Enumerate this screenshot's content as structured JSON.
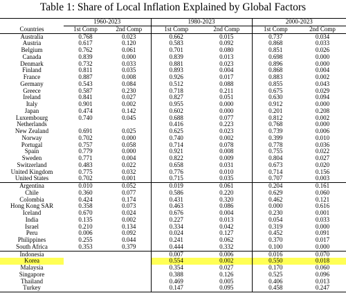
{
  "title": "Table 1: Share of Local Inflation Explained by Global Factors",
  "table": {
    "country_header": "Countries",
    "periods": [
      {
        "label": "1960-2023",
        "columns": [
          "1st Comp",
          "2nd Comp"
        ]
      },
      {
        "label": "1980-2023",
        "columns": [
          "1st Comp",
          "2nd Comp"
        ]
      },
      {
        "label": "2000-2023",
        "columns": [
          "1st Comp",
          "2nd Comp"
        ]
      }
    ],
    "groups": [
      [
        {
          "country": "Australia",
          "values": [
            "0.768",
            "0.023",
            "0.662",
            "0.015",
            "0.737",
            "0.034"
          ]
        },
        {
          "country": "Austria",
          "values": [
            "0.617",
            "0.120",
            "0.583",
            "0.092",
            "0.868",
            "0.033"
          ]
        },
        {
          "country": "Belgium",
          "values": [
            "0.762",
            "0.061",
            "0.701",
            "0.080",
            "0.851",
            "0.026"
          ]
        },
        {
          "country": "Canada",
          "values": [
            "0.839",
            "0.000",
            "0.839",
            "0.013",
            "0.698",
            "0.000"
          ]
        },
        {
          "country": "Denmark",
          "values": [
            "0.732",
            "0.033",
            "0.881",
            "0.023",
            "0.896",
            "0.000"
          ]
        },
        {
          "country": "Finland",
          "values": [
            "0.811",
            "0.035",
            "0.893",
            "0.004",
            "0.868",
            "0.004"
          ]
        },
        {
          "country": "France",
          "values": [
            "0.887",
            "0.008",
            "0.926",
            "0.017",
            "0.883",
            "0.002"
          ]
        },
        {
          "country": "Germany",
          "values": [
            "0.543",
            "0.084",
            "0.512",
            "0.088",
            "0.855",
            "0.043"
          ]
        },
        {
          "country": "Greece",
          "values": [
            "0.587",
            "0.230",
            "0.718",
            "0.211",
            "0.675",
            "0.029"
          ]
        },
        {
          "country": "Ireland",
          "values": [
            "0.841",
            "0.027",
            "0.827",
            "0.051",
            "0.630",
            "0.094"
          ]
        },
        {
          "country": "Italy",
          "values": [
            "0.901",
            "0.002",
            "0.955",
            "0.000",
            "0.912",
            "0.000"
          ]
        },
        {
          "country": "Japan",
          "values": [
            "0.474",
            "0.142",
            "0.602",
            "0.000",
            "0.201",
            "0.208"
          ]
        },
        {
          "country": "Luxembourg",
          "values": [
            "0.740",
            "0.045",
            "0.688",
            "0.077",
            "0.812",
            "0.002"
          ]
        },
        {
          "country": "Netherlands",
          "values": [
            null,
            null,
            "0.416",
            "0.223",
            "0.768",
            "0.000"
          ]
        },
        {
          "country": "New Zealand",
          "values": [
            "0.691",
            "0.025",
            "0.625",
            "0.023",
            "0.739",
            "0.006"
          ]
        },
        {
          "country": "Norway",
          "values": [
            "0.702",
            "0.000",
            "0.740",
            "0.002",
            "0.399",
            "0.010"
          ]
        },
        {
          "country": "Portugal",
          "values": [
            "0.757",
            "0.058",
            "0.714",
            "0.078",
            "0.778",
            "0.036"
          ]
        },
        {
          "country": "Spain",
          "values": [
            "0.779",
            "0.000",
            "0.921",
            "0.008",
            "0.755",
            "0.022"
          ]
        },
        {
          "country": "Sweden",
          "values": [
            "0.771",
            "0.004",
            "0.822",
            "0.009",
            "0.804",
            "0.027"
          ]
        },
        {
          "country": "Switzerland",
          "values": [
            "0.483",
            "0.022",
            "0.658",
            "0.031",
            "0.673",
            "0.020"
          ]
        },
        {
          "country": "United Kingdom",
          "values": [
            "0.775",
            "0.032",
            "0.776",
            "0.010",
            "0.714",
            "0.156"
          ]
        },
        {
          "country": "United States",
          "values": [
            "0.702",
            "0.001",
            "0.715",
            "0.035",
            "0.707",
            "0.003"
          ]
        }
      ],
      [
        {
          "country": "Argentina",
          "values": [
            "0.010",
            "0.052",
            "0.019",
            "0.061",
            "0.204",
            "0.161"
          ]
        },
        {
          "country": "Chile",
          "values": [
            "0.360",
            "0.077",
            "0.586",
            "0.220",
            "0.629",
            "0.060"
          ]
        },
        {
          "country": "Colombia",
          "values": [
            "0.424",
            "0.174",
            "0.431",
            "0.320",
            "0.462",
            "0.121"
          ]
        },
        {
          "country": "Hong Kong SAR",
          "values": [
            "0.358",
            "0.073",
            "0.463",
            "0.086",
            "0.000",
            "0.616"
          ]
        },
        {
          "country": "Iceland",
          "values": [
            "0.670",
            "0.024",
            "0.676",
            "0.004",
            "0.230",
            "0.001"
          ]
        },
        {
          "country": "India",
          "values": [
            "0.135",
            "0.002",
            "0.227",
            "0.013",
            "0.054",
            "0.033"
          ]
        },
        {
          "country": "Israel",
          "values": [
            "0.210",
            "0.134",
            "0.334",
            "0.042",
            "0.319",
            "0.000"
          ]
        },
        {
          "country": "Peru",
          "values": [
            "0.006",
            "0.092",
            "0.024",
            "0.127",
            "0.452",
            "0.091"
          ]
        },
        {
          "country": "Philippines",
          "values": [
            "0.255",
            "0.044",
            "0.241",
            "0.062",
            "0.370",
            "0.017"
          ]
        },
        {
          "country": "South Africa",
          "values": [
            "0.353",
            "0.379",
            "0.444",
            "0.332",
            "0.100",
            "0.000"
          ]
        }
      ],
      [
        {
          "country": "Indonesia",
          "values": [
            null,
            null,
            "0.007",
            "0.006",
            "0.016",
            "0.070"
          ]
        },
        {
          "country": "Korea",
          "highlighted": true,
          "values": [
            null,
            null,
            "0.554",
            "0.002",
            "0.550",
            "0.018"
          ]
        },
        {
          "country": "Malaysia",
          "values": [
            null,
            null,
            "0.354",
            "0.027",
            "0.170",
            "0.060"
          ]
        },
        {
          "country": "Singapore",
          "values": [
            null,
            null,
            "0.388",
            "0.126",
            "0.525",
            "0.096"
          ]
        },
        {
          "country": "Thailand",
          "values": [
            null,
            null,
            "0.469",
            "0.005",
            "0.406",
            "0.013"
          ]
        },
        {
          "country": "Turkey",
          "values": [
            null,
            null,
            "0.147",
            "0.095",
            "0.458",
            "0.247"
          ]
        }
      ]
    ]
  }
}
